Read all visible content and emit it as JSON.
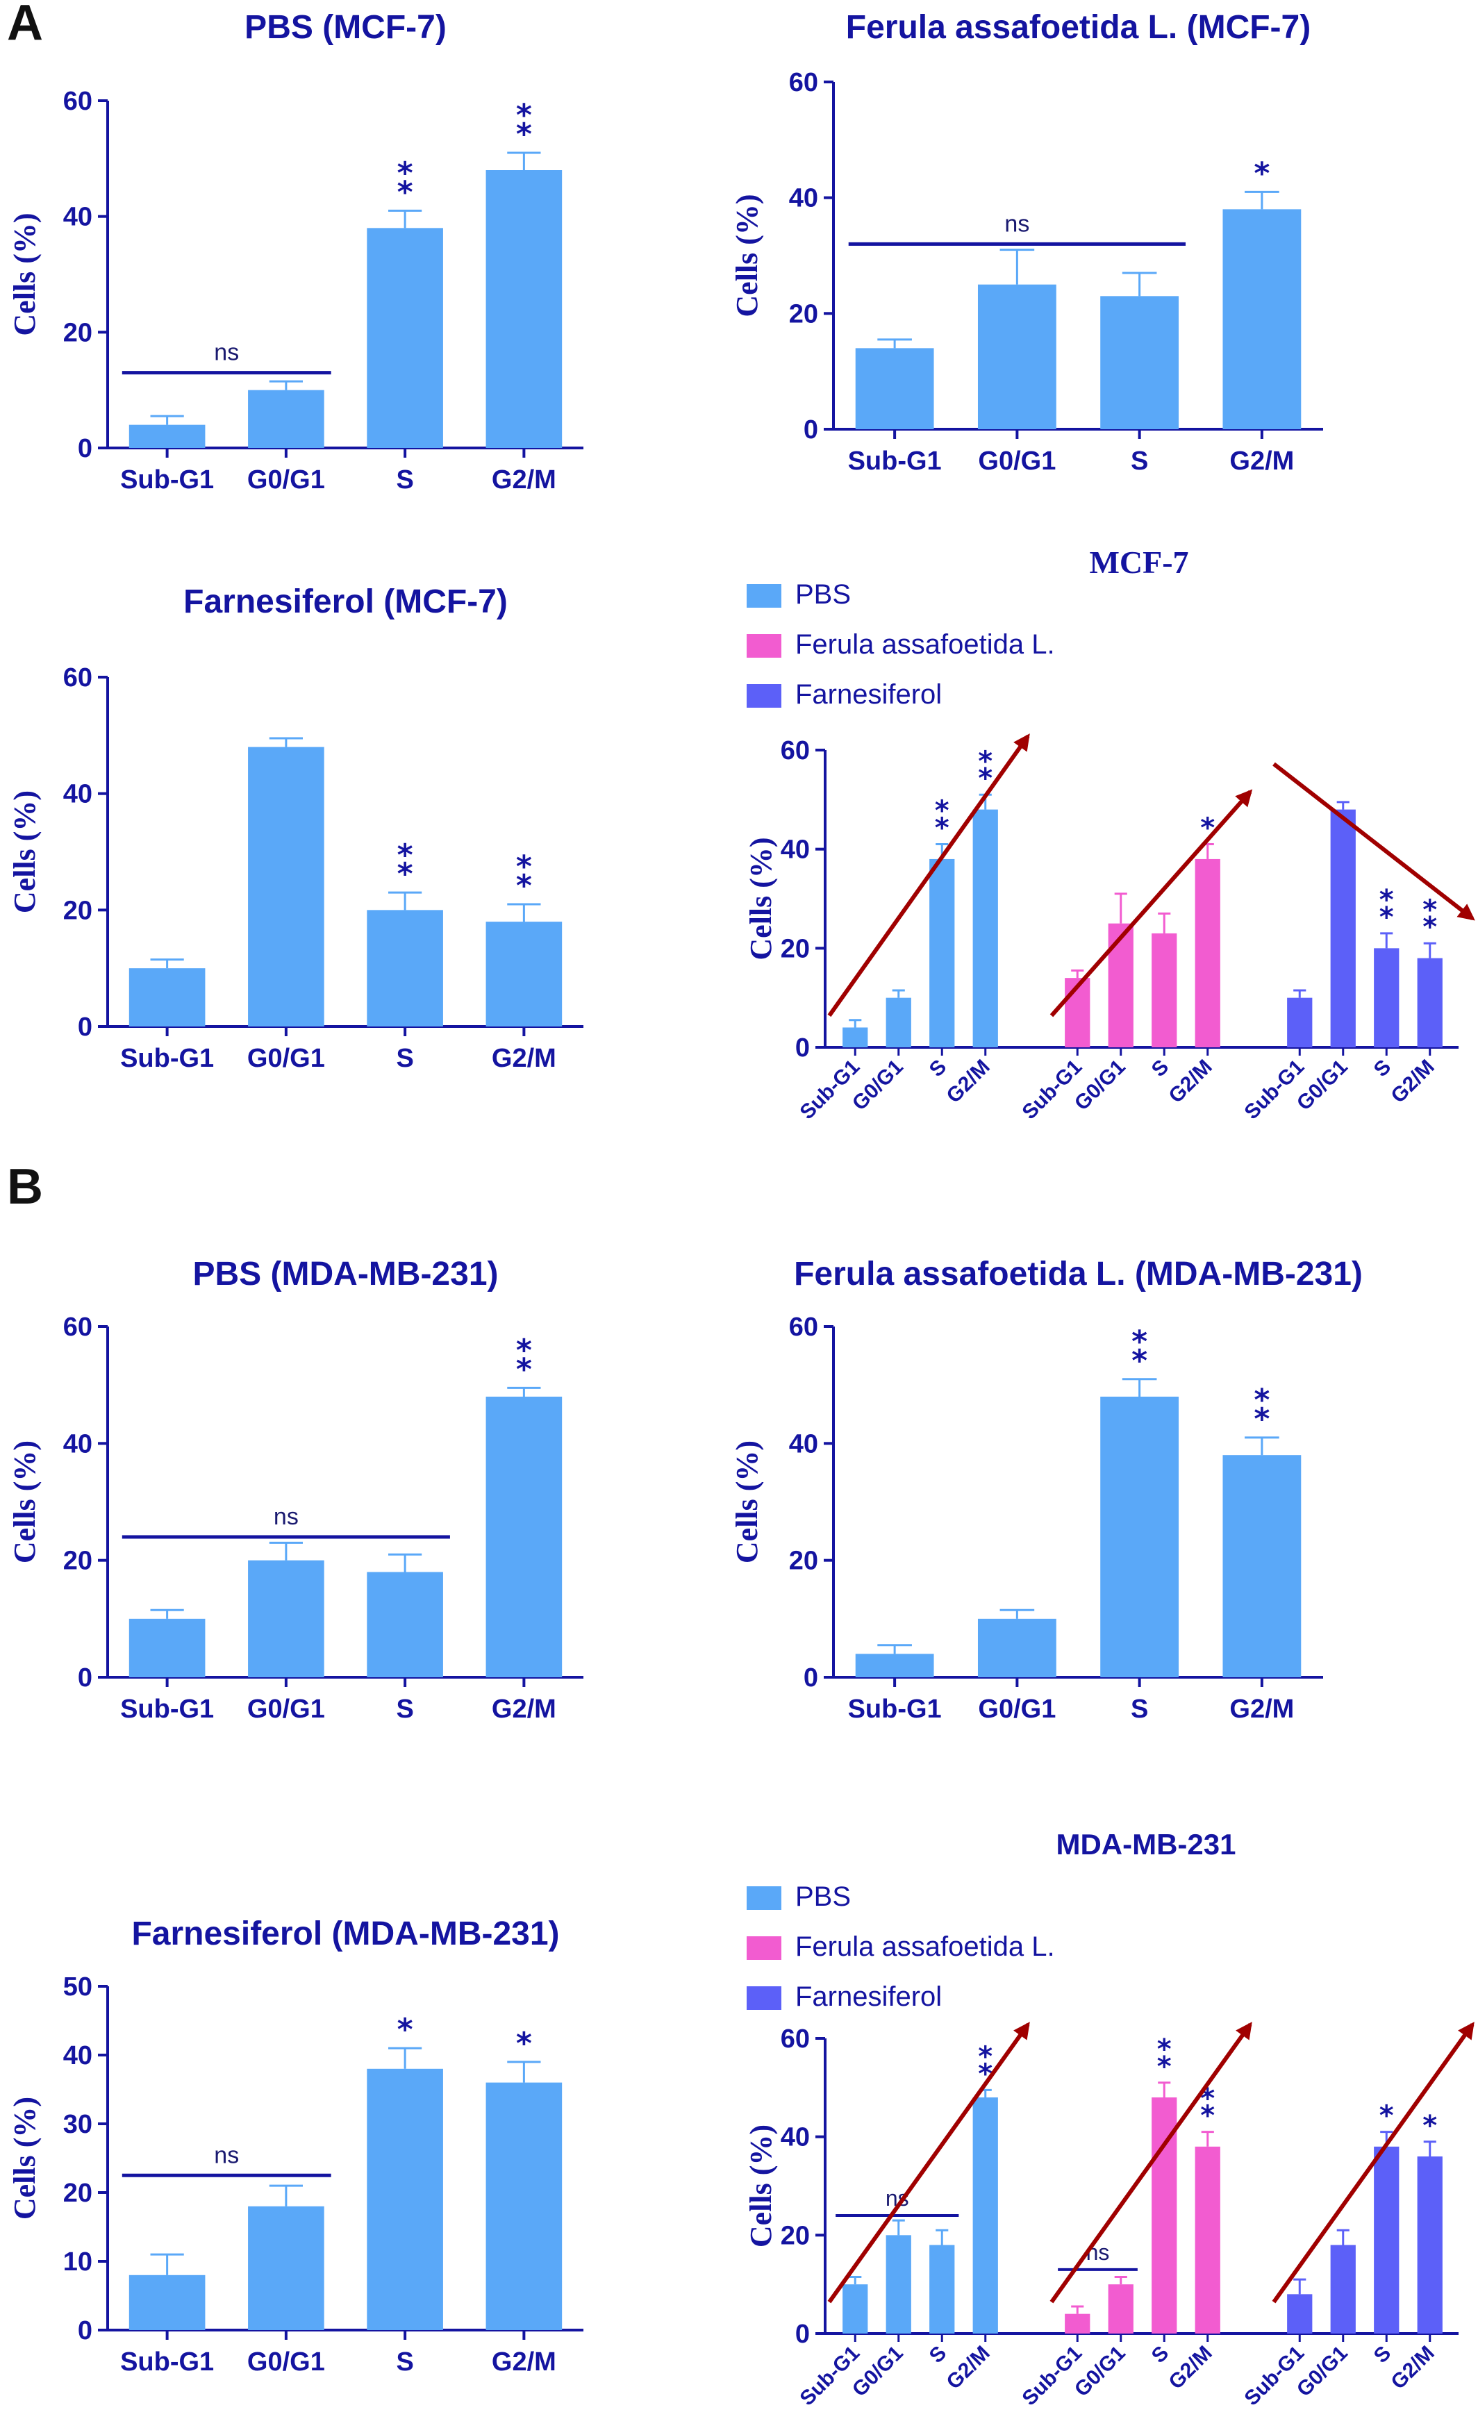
{
  "figure": {
    "panel_labels": [
      "A",
      "B"
    ],
    "significance_colors": {
      "text": "#1414a0",
      "ns_line": "#1414a0"
    },
    "arrow_color": "#a00000"
  },
  "chart_data": [
    {
      "id": "pbs_mcf7",
      "type": "bar",
      "title": "PBS (MCF-7)",
      "ylabel": "Cells (%)",
      "ylim": [
        0,
        60
      ],
      "yticks": [
        0,
        20,
        40,
        60
      ],
      "categories": [
        "Sub-G1",
        "G0/G1",
        "S",
        "G2/M"
      ],
      "values": [
        4,
        10,
        38,
        48
      ],
      "errors": [
        1.5,
        1.5,
        3,
        3
      ],
      "color": "#5aa8f8",
      "annotations": [
        "",
        "",
        "**",
        "**"
      ],
      "ns_bracket": {
        "label": "ns",
        "from": 0,
        "to": 1,
        "y": 13
      }
    },
    {
      "id": "ferula_mcf7",
      "type": "bar",
      "title": "Ferula assafoetida L. (MCF-7)",
      "ylabel": "Cells (%)",
      "ylim": [
        0,
        60
      ],
      "yticks": [
        0,
        20,
        40,
        60
      ],
      "categories": [
        "Sub-G1",
        "G0/G1",
        "S",
        "G2/M"
      ],
      "values": [
        14,
        25,
        23,
        38
      ],
      "errors": [
        1.5,
        6,
        4,
        3
      ],
      "color": "#5aa8f8",
      "annotations": [
        "",
        "",
        "",
        "*"
      ],
      "ns_bracket": {
        "label": "ns",
        "from": 0,
        "to": 2,
        "y": 32
      }
    },
    {
      "id": "farnesiferol_mcf7",
      "type": "bar",
      "title": "Farnesiferol (MCF-7)",
      "ylabel": "Cells (%)",
      "ylim": [
        0,
        60
      ],
      "yticks": [
        0,
        20,
        40,
        60
      ],
      "categories": [
        "Sub-G1",
        "G0/G1",
        "S",
        "G2/M"
      ],
      "values": [
        10,
        48,
        20,
        18
      ],
      "errors": [
        1.5,
        1.5,
        3,
        3
      ],
      "color": "#5aa8f8",
      "annotations": [
        "",
        "",
        "**",
        "**"
      ]
    },
    {
      "id": "combined_mcf7",
      "type": "bar",
      "title": "MCF-7",
      "ylabel": "Cells (%)",
      "ylim": [
        0,
        60
      ],
      "yticks": [
        0,
        20,
        40,
        60
      ],
      "legend": [
        {
          "name": "PBS",
          "color": "#5aa8f8"
        },
        {
          "name": "Ferula assafoetida L.",
          "color": "#f25cd0"
        },
        {
          "name": "Farnesiferol",
          "color": "#5c60f8"
        }
      ],
      "categories": [
        "Sub-G1",
        "G0/G1",
        "S",
        "G2/M"
      ],
      "series": [
        {
          "name": "PBS",
          "values": [
            4,
            10,
            38,
            48
          ],
          "errors": [
            1.5,
            1.5,
            3,
            3
          ],
          "annotations": [
            "",
            "",
            "**",
            "**"
          ]
        },
        {
          "name": "Ferula assafoetida L.",
          "values": [
            14,
            25,
            23,
            38
          ],
          "errors": [
            1.5,
            6,
            4,
            3
          ],
          "annotations": [
            "",
            "",
            "",
            "*"
          ]
        },
        {
          "name": "Farnesiferol",
          "values": [
            10,
            48,
            20,
            18
          ],
          "errors": [
            1.5,
            1.5,
            3,
            3
          ],
          "annotations": [
            "",
            "",
            "**",
            "**"
          ]
        }
      ],
      "trend_arrows": [
        "up",
        "up",
        "down"
      ]
    },
    {
      "id": "pbs_mda",
      "type": "bar",
      "title": "PBS (MDA-MB-231)",
      "ylabel": "Cells (%)",
      "ylim": [
        0,
        60
      ],
      "yticks": [
        0,
        20,
        40,
        60
      ],
      "categories": [
        "Sub-G1",
        "G0/G1",
        "S",
        "G2/M"
      ],
      "values": [
        10,
        20,
        18,
        48
      ],
      "errors": [
        1.5,
        3,
        3,
        1.5
      ],
      "color": "#5aa8f8",
      "annotations": [
        "",
        "",
        "",
        "**"
      ],
      "ns_bracket": {
        "label": "ns",
        "from": 0,
        "to": 2,
        "y": 24
      }
    },
    {
      "id": "ferula_mda",
      "type": "bar",
      "title": "Ferula assafoetida L. (MDA-MB-231)",
      "ylabel": "Cells (%)",
      "ylim": [
        0,
        60
      ],
      "yticks": [
        0,
        20,
        40,
        60
      ],
      "categories": [
        "Sub-G1",
        "G0/G1",
        "S",
        "G2/M"
      ],
      "values": [
        4,
        10,
        48,
        38
      ],
      "errors": [
        1.5,
        1.5,
        3,
        3
      ],
      "color": "#5aa8f8",
      "annotations": [
        "",
        "",
        "**",
        "**"
      ]
    },
    {
      "id": "farnesiferol_mda",
      "type": "bar",
      "title": "Farnesiferol (MDA-MB-231)",
      "ylabel": "Cells (%)",
      "ylim": [
        0,
        50
      ],
      "yticks": [
        0,
        10,
        20,
        30,
        40,
        50
      ],
      "categories": [
        "Sub-G1",
        "G0/G1",
        "S",
        "G2/M"
      ],
      "values": [
        8,
        18,
        38,
        36
      ],
      "errors": [
        3,
        3,
        3,
        3
      ],
      "color": "#5aa8f8",
      "annotations": [
        "",
        "",
        "*",
        "*"
      ],
      "ns_bracket": {
        "label": "ns",
        "from": 0,
        "to": 1,
        "y": 22.5
      }
    },
    {
      "id": "combined_mda",
      "type": "bar",
      "title": "MDA-MB-231",
      "ylabel": "Cells (%)",
      "ylim": [
        0,
        60
      ],
      "yticks": [
        0,
        20,
        40,
        60
      ],
      "legend": [
        {
          "name": "PBS",
          "color": "#5aa8f8"
        },
        {
          "name": "Ferula assafoetida L.",
          "color": "#f25cd0"
        },
        {
          "name": "Farnesiferol",
          "color": "#5c60f8"
        }
      ],
      "categories": [
        "Sub-G1",
        "G0/G1",
        "S",
        "G2/M"
      ],
      "series": [
        {
          "name": "PBS",
          "values": [
            10,
            20,
            18,
            48
          ],
          "errors": [
            1.5,
            3,
            3,
            1.5
          ],
          "annotations": [
            "",
            "",
            "",
            "**"
          ],
          "ns_bracket": {
            "label": "ns",
            "from": 0,
            "to": 2,
            "y": 24
          }
        },
        {
          "name": "Ferula assafoetida L.",
          "values": [
            4,
            10,
            48,
            38
          ],
          "errors": [
            1.5,
            1.5,
            3,
            3
          ],
          "annotations": [
            "",
            "",
            "**",
            "**"
          ],
          "ns_bracket": {
            "label": "ns",
            "from": 0,
            "to": 1,
            "y": 13
          }
        },
        {
          "name": "Farnesiferol",
          "values": [
            8,
            18,
            38,
            36
          ],
          "errors": [
            3,
            3,
            3,
            3
          ],
          "annotations": [
            "",
            "",
            "*",
            "*"
          ]
        }
      ],
      "trend_arrows": [
        "up",
        "up",
        "up"
      ]
    }
  ]
}
